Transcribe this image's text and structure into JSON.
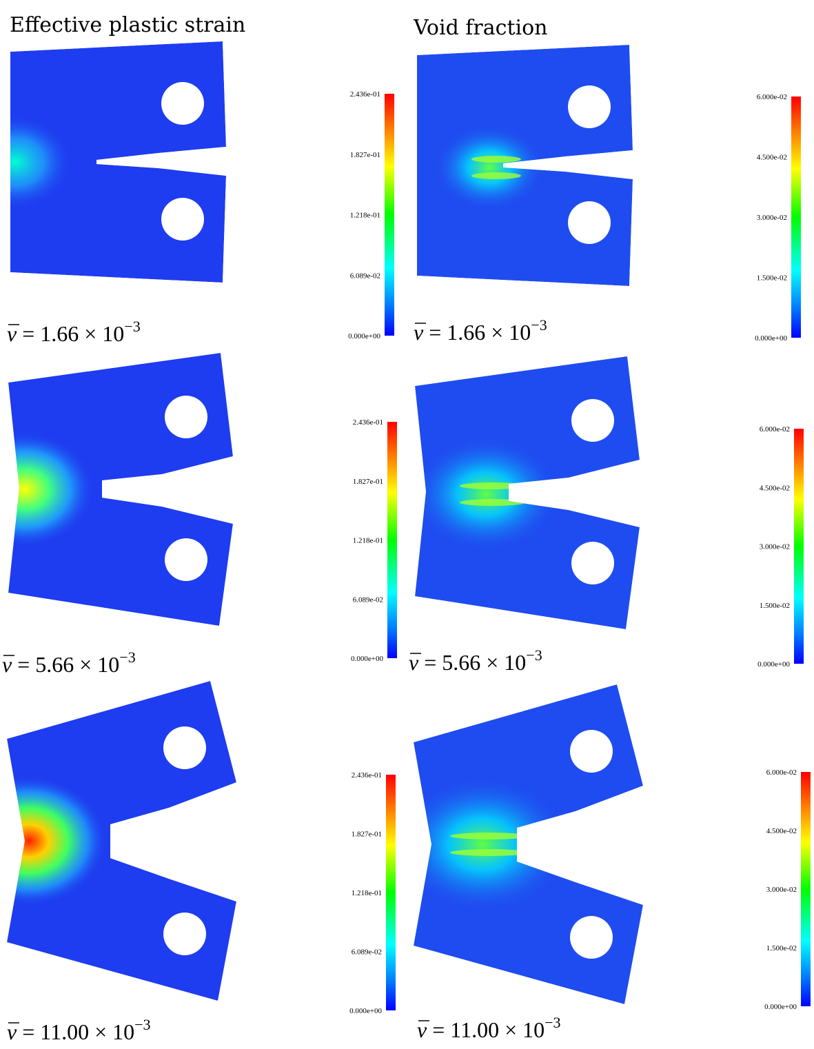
{
  "titles": [
    "Effective plastic strain",
    "Void fraction"
  ],
  "colorbars": [
    [
      "2.436e-01",
      "1.827e-01",
      "1.218e-01",
      "6.089e-02",
      "0.000e+00"
    ],
    [
      "6.000e-02",
      "4.500e-02",
      "3.000e-02",
      "1.500e-02",
      "0.000e+00"
    ]
  ],
  "rows": [
    {
      "symbol": "v",
      "text": "= 1.66 × 10",
      "exponent": "−3"
    },
    {
      "symbol": "v",
      "text": "= 5.66 × 10",
      "exponent": "−3"
    },
    {
      "symbol": "v",
      "text": "= 11.00 × 10",
      "exponent": "−3"
    }
  ]
}
